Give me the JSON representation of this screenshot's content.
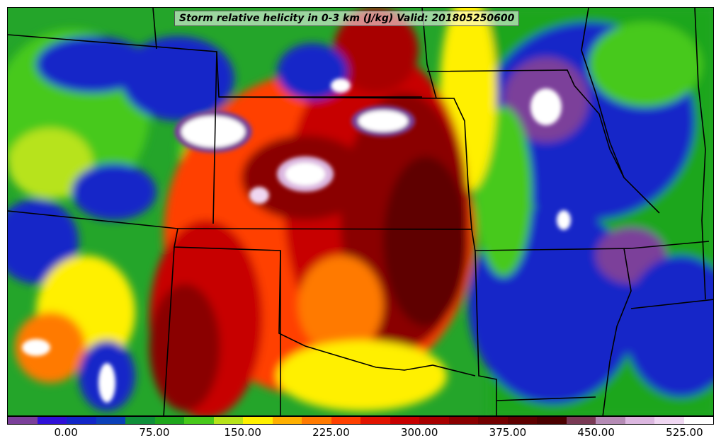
{
  "title": "Storm relative helicity in 0-3 km (J/kg) Valid: 201805250600",
  "colorbar": {
    "colors": [
      "#7b3f9a",
      "#2f10d8",
      "#1226c8",
      "#0b40b8",
      "#0f8f3a",
      "#1ea61c",
      "#47c91a",
      "#b7e31a",
      "#fff000",
      "#ffb000",
      "#ff7a00",
      "#ff4000",
      "#e21400",
      "#c70000",
      "#a80000",
      "#8a0000",
      "#730000",
      "#5e0000",
      "#4b0000",
      "#7a3a55",
      "#b58bb5",
      "#dcb7e0",
      "#f0d7f2",
      "#ffffff"
    ],
    "tick_labels": [
      "0.00",
      "75.00",
      "150.00",
      "225.00",
      "300.00",
      "375.00",
      "450.00",
      "525.00"
    ]
  }
}
